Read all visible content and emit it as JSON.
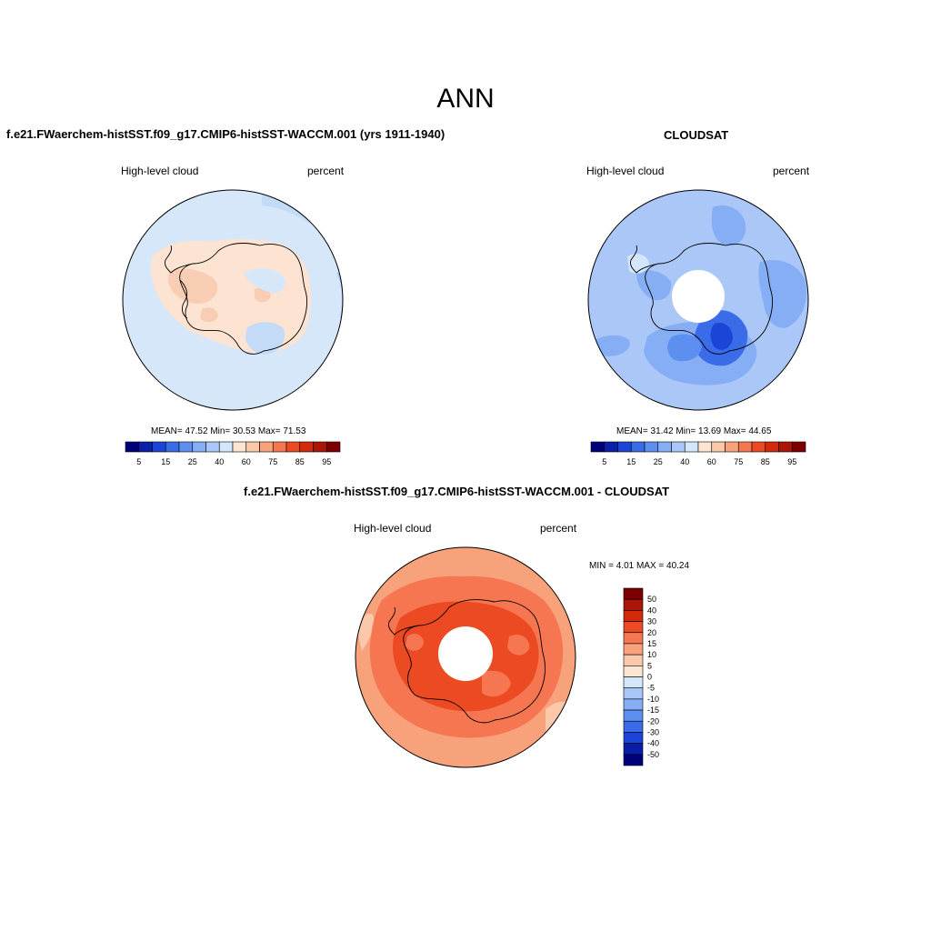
{
  "figure": {
    "main_title": "ANN",
    "variable": "High-level cloud",
    "units": "percent"
  },
  "panels": {
    "model": {
      "title": "f.e21.FWaerchem-histSST.f09_g17.CMIP6-histSST-WACCM.001 (yrs 1911-1940)",
      "subtitle_left": "High-level cloud",
      "subtitle_right": "percent",
      "stats": "MEAN=  47.52  Min=  30.53  Max=  71.53"
    },
    "obs": {
      "title": "CLOUDSAT",
      "subtitle_left": "High-level cloud",
      "subtitle_right": "percent",
      "stats": "MEAN=  31.42  Min=  13.69  Max=  44.65"
    },
    "diff": {
      "title": "f.e21.FWaerchem-histSST.f09_g17.CMIP6-histSST-WACCM.001 - CLOUDSAT",
      "subtitle_left": "High-level cloud",
      "subtitle_right": "percent",
      "stats": "MIN =   4.01 MAX =  40.24"
    }
  },
  "chart_data": [
    {
      "type": "heatmap",
      "projection": "south polar stereographic",
      "title": "f.e21.FWaerchem-histSST.f09_g17.CMIP6-histSST-WACCM.001 (yrs 1911-1940)",
      "field": "High-level cloud",
      "units": "percent",
      "mean": 47.52,
      "min": 30.53,
      "max": 71.53,
      "colorbar_ticks": [
        "5",
        "15",
        "25",
        "40",
        "60",
        "75",
        "85",
        "95"
      ],
      "colorbar_levels": [
        5,
        10,
        15,
        20,
        25,
        30,
        40,
        50,
        60,
        70,
        75,
        80,
        85,
        90,
        95
      ],
      "colorbar_colors": [
        "#00007a",
        "#0a1fa8",
        "#1b45d6",
        "#3a6be8",
        "#5c8ff0",
        "#85aef5",
        "#a8c6f8",
        "#d4e6fa",
        "#fde5d3",
        "#fbc8aa",
        "#f8a27c",
        "#f57650",
        "#ec4a22",
        "#d42a0c",
        "#ab1505",
        "#7d0000"
      ]
    },
    {
      "type": "heatmap",
      "projection": "south polar stereographic",
      "title": "CLOUDSAT",
      "field": "High-level cloud",
      "units": "percent",
      "mean": 31.42,
      "min": 13.69,
      "max": 44.65,
      "colorbar_ticks": [
        "5",
        "15",
        "25",
        "40",
        "60",
        "75",
        "85",
        "95"
      ],
      "colorbar_levels": [
        5,
        10,
        15,
        20,
        25,
        30,
        40,
        50,
        60,
        70,
        75,
        80,
        85,
        90,
        95
      ],
      "colorbar_colors": [
        "#00007a",
        "#0a1fa8",
        "#1b45d6",
        "#3a6be8",
        "#5c8ff0",
        "#85aef5",
        "#a8c6f8",
        "#d4e6fa",
        "#fde5d3",
        "#fbc8aa",
        "#f8a27c",
        "#f57650",
        "#ec4a22",
        "#d42a0c",
        "#ab1505",
        "#7d0000"
      ]
    },
    {
      "type": "heatmap",
      "projection": "south polar stereographic",
      "title": "f.e21.FWaerchem-histSST.f09_g17.CMIP6-histSST-WACCM.001 - CLOUDSAT",
      "field": "High-level cloud",
      "units": "percent",
      "min": 4.01,
      "max": 40.24,
      "colorbar_ticks": [
        "50",
        "40",
        "30",
        "20",
        "15",
        "10",
        "5",
        "0",
        "-5",
        "-10",
        "-15",
        "-20",
        "-30",
        "-40",
        "-50"
      ],
      "colorbar_colors": [
        "#7d0000",
        "#ab1505",
        "#d42a0c",
        "#ec4a22",
        "#f57650",
        "#f8a27c",
        "#fbc8aa",
        "#fde5d3",
        "#d4e6fa",
        "#a8c6f8",
        "#85aef5",
        "#5c8ff0",
        "#3a6be8",
        "#1b45d6",
        "#0a1fa8",
        "#00007a"
      ]
    }
  ],
  "colors": {
    "model_background": "#d6e7fa",
    "model_land_fill": "#fce3d2",
    "model_land_dark": "#f9cdb4",
    "obs_background": "#aac7f8",
    "obs_mid": "#86aef5",
    "obs_dark": "#3a6be8",
    "obs_darkest": "#1b45d6",
    "diff_outer": "#f8a27c",
    "diff_mid": "#f57650",
    "diff_inner": "#ec4a22",
    "coastline": "#000000",
    "missing": "#ffffff"
  }
}
